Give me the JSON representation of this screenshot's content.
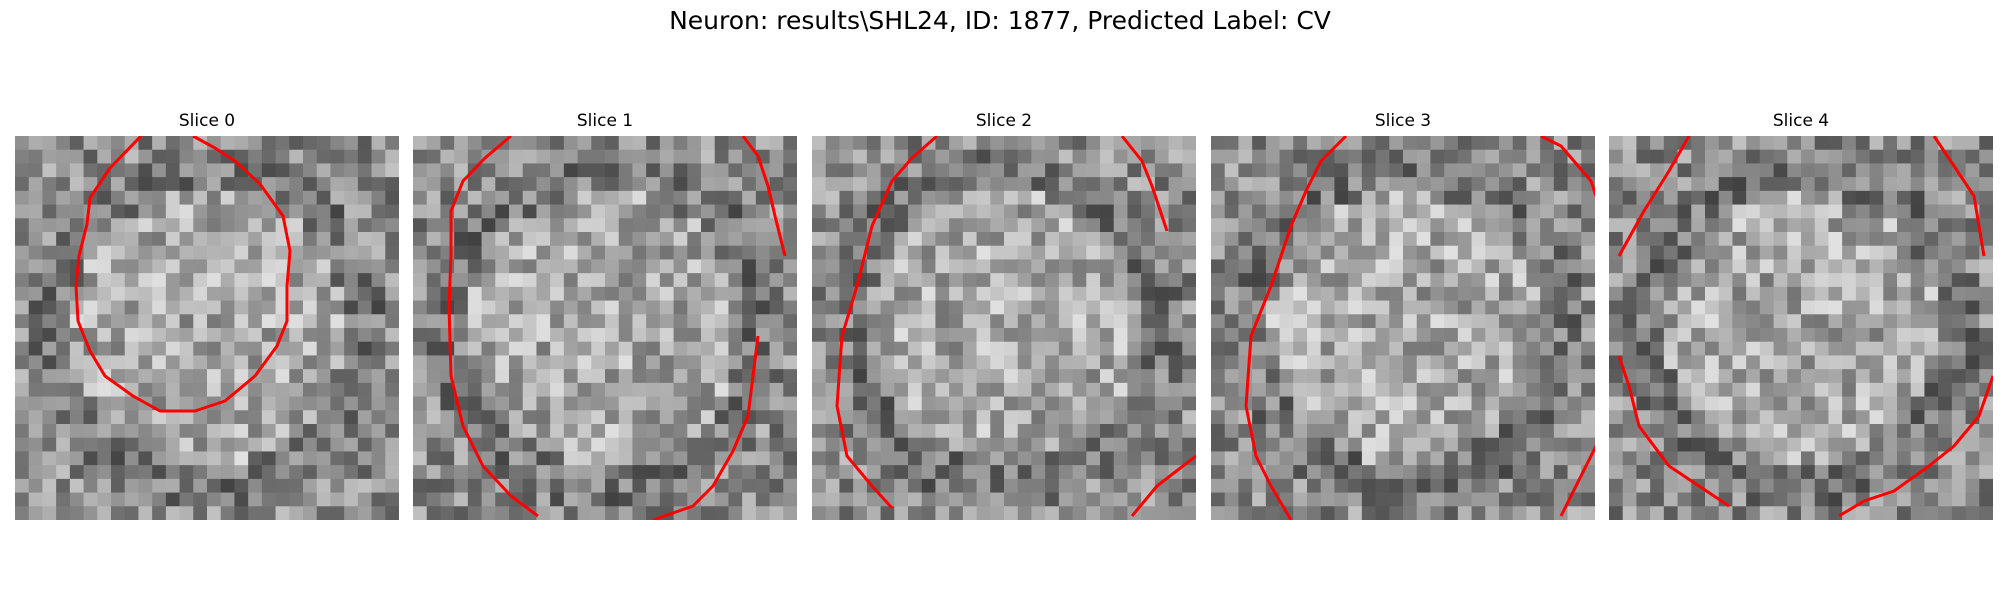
{
  "title": "Neuron: results\\SHL24, ID: 1877, Predicted Label: CV",
  "panels": [
    {
      "title": "Slice 0"
    },
    {
      "title": "Slice 1"
    },
    {
      "title": "Slice 2"
    },
    {
      "title": "Slice 3"
    },
    {
      "title": "Slice 4"
    }
  ],
  "colors": {
    "contour": "#ff0000",
    "background": "#ffffff"
  }
}
